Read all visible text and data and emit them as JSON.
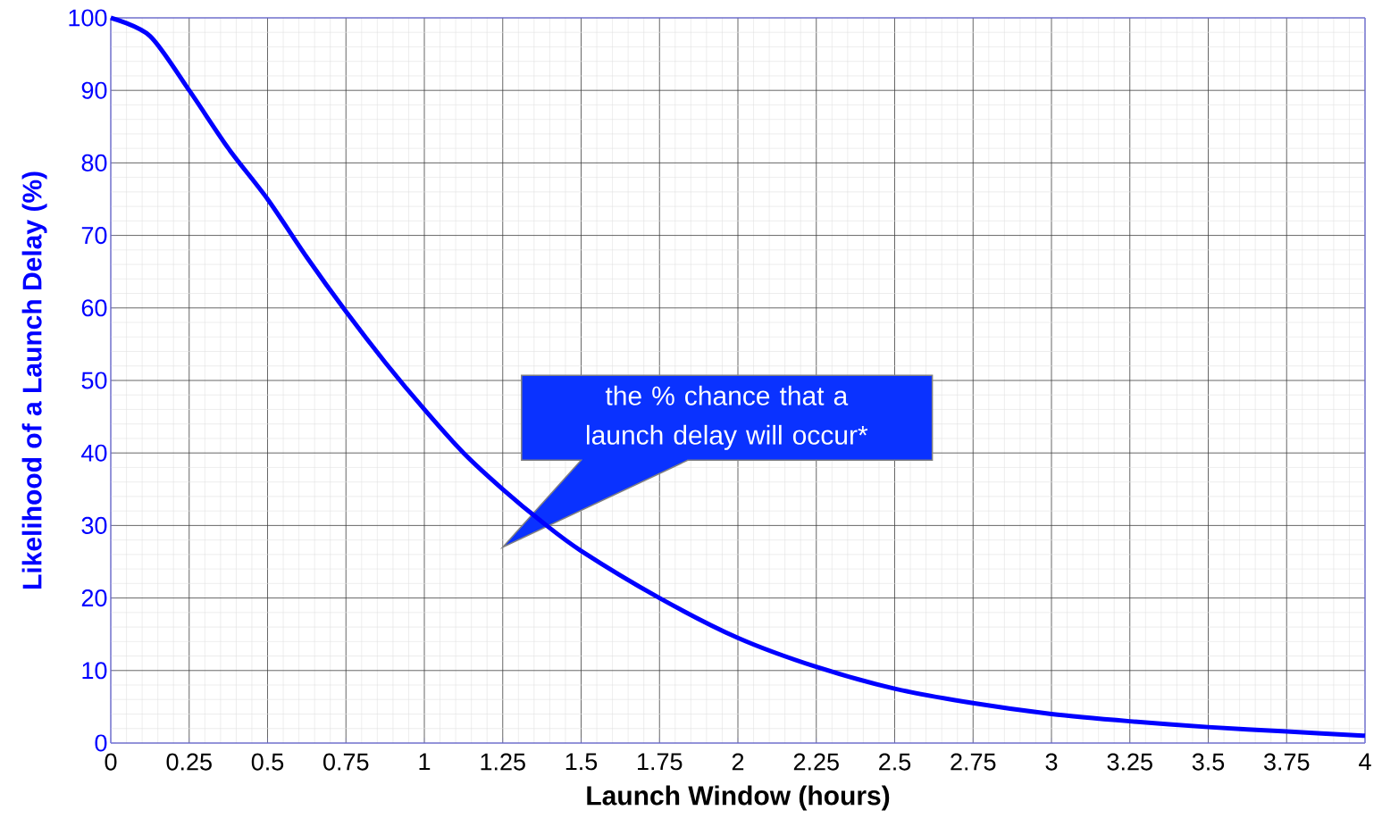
{
  "chart_data": {
    "type": "line",
    "xlabel": "Launch Window (hours)",
    "ylabel": "Likelihood of a Launch Delay (%)",
    "x": [
      0,
      0.125,
      0.25,
      0.375,
      0.5,
      0.625,
      0.75,
      0.875,
      1,
      1.125,
      1.25,
      1.375,
      1.5,
      1.75,
      2,
      2.25,
      2.5,
      2.75,
      3,
      3.25,
      3.5,
      3.75,
      4
    ],
    "values": [
      100,
      97.5,
      90,
      82,
      75,
      67,
      59.5,
      52.5,
      46,
      40,
      35,
      30.5,
      26.5,
      20,
      14.5,
      10.5,
      7.5,
      5.5,
      4,
      3,
      2.2,
      1.6,
      1
    ],
    "color": "#0000ff",
    "xlim": [
      0,
      4
    ],
    "ylim": [
      0,
      100
    ],
    "xticks": [
      0,
      0.25,
      0.5,
      0.75,
      1,
      1.25,
      1.5,
      1.75,
      2,
      2.25,
      2.5,
      2.75,
      3,
      3.25,
      3.5,
      3.75,
      4
    ],
    "yticks": [
      0,
      10,
      20,
      30,
      40,
      50,
      60,
      70,
      80,
      90,
      100
    ],
    "grid": true,
    "annotations": [
      "the % chance that a launch delay will occur*"
    ]
  }
}
